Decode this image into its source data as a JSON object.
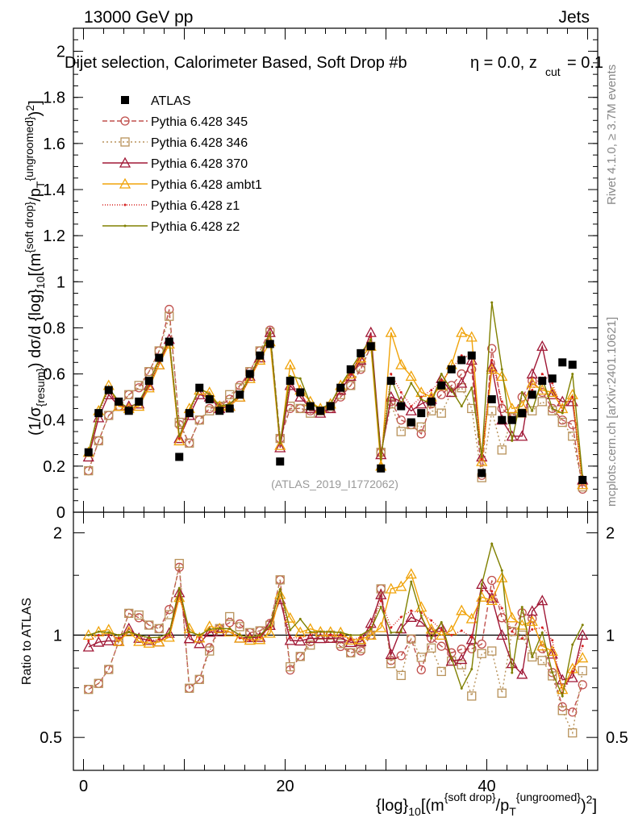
{
  "header": {
    "energy": "13000 GeV pp",
    "process": "Jets"
  },
  "side_labels": {
    "rivet": "Rivet 4.1.0, ≥ 3.7M events",
    "mcplots": "mcplots.cern.ch [arXiv:2401.10621]"
  },
  "chart_data": [
    {
      "type": "line",
      "panel": "main",
      "title": "Dijet selection, Calorimeter Based, Soft Drop #b = 0.0, z_cut = 0.1",
      "title_parts": {
        "main": "Dijet selection, Calorimeter Based, Soft Drop #b",
        "eta": "η = 0.0, z",
        "cut": "cut",
        "tail": " = 0.1"
      },
      "watermark": "(ATLAS_2019_I1772062)",
      "ylabel_text": "(1/σ_{resum}) dσ/d {log}_10[(m^{soft drop}/p_T^{ungroomed})^2]",
      "ylim": [
        0,
        2.1
      ],
      "xlim": [
        -1,
        51
      ],
      "yticks": [
        "0",
        "0.2",
        "0.4",
        "0.6",
        "0.8",
        "1",
        "1.2",
        "1.4",
        "1.6",
        "1.8",
        "2"
      ],
      "x": [
        0.5,
        1.5,
        2.5,
        3.5,
        4.5,
        5.5,
        6.5,
        7.5,
        8.5,
        9.5,
        10.5,
        11.5,
        12.5,
        13.5,
        14.5,
        15.5,
        16.5,
        17.5,
        18.5,
        19.5,
        20.5,
        21.5,
        22.5,
        23.5,
        24.5,
        25.5,
        26.5,
        27.5,
        28.5,
        29.5,
        30.5,
        31.5,
        32.5,
        33.5,
        34.5,
        35.5,
        36.5,
        37.5,
        38.5,
        39.5,
        40.5,
        41.5,
        42.5,
        43.5,
        44.5,
        45.5,
        46.5,
        47.5,
        48.5,
        49.5
      ],
      "series": [
        {
          "name": "ATLAS",
          "color": "#000000",
          "marker": "square-filled",
          "dash": "none",
          "values": [
            0.26,
            0.43,
            0.53,
            0.48,
            0.44,
            0.48,
            0.57,
            0.67,
            0.74,
            0.24,
            0.43,
            0.54,
            0.49,
            0.44,
            0.45,
            0.51,
            0.6,
            0.68,
            0.73,
            0.22,
            0.57,
            0.52,
            0.46,
            0.44,
            0.46,
            0.54,
            0.62,
            0.69,
            0.72,
            0.19,
            0.57,
            0.46,
            0.39,
            0.43,
            0.48,
            0.55,
            0.62,
            0.66,
            0.68,
            0.17,
            0.49,
            0.4,
            0.4,
            0.43,
            0.51,
            0.57,
            0.58,
            0.65,
            0.64,
            0.14
          ]
        },
        {
          "name": "Pythia 6.428 345",
          "color": "#c0504d",
          "marker": "circle-open",
          "dash": "6,3",
          "values": [
            0.18,
            0.31,
            0.42,
            0.46,
            0.51,
            0.54,
            0.61,
            0.7,
            0.88,
            0.38,
            0.3,
            0.4,
            0.45,
            0.46,
            0.49,
            0.55,
            0.61,
            0.7,
            0.79,
            0.32,
            0.45,
            0.45,
            0.44,
            0.44,
            0.45,
            0.5,
            0.55,
            0.62,
            0.72,
            0.26,
            0.48,
            0.4,
            0.38,
            0.34,
            0.47,
            0.51,
            0.55,
            0.6,
            0.62,
            0.16,
            0.71,
            0.45,
            0.41,
            0.5,
            0.57,
            0.52,
            0.45,
            0.4,
            0.38,
            0.1
          ]
        },
        {
          "name": "Pythia 6.428 346",
          "color": "#b8925a",
          "marker": "square-open",
          "dash": "2,3",
          "values": [
            0.18,
            0.31,
            0.42,
            0.46,
            0.51,
            0.55,
            0.61,
            0.7,
            0.85,
            0.39,
            0.3,
            0.4,
            0.44,
            0.46,
            0.51,
            0.54,
            0.61,
            0.7,
            0.78,
            0.32,
            0.46,
            0.45,
            0.43,
            0.44,
            0.46,
            0.51,
            0.55,
            0.63,
            0.72,
            0.26,
            0.47,
            0.35,
            0.38,
            0.37,
            0.44,
            0.43,
            0.52,
            0.54,
            0.45,
            0.15,
            0.44,
            0.27,
            0.41,
            0.43,
            0.44,
            0.48,
            0.44,
            0.39,
            0.33,
            0.11
          ]
        },
        {
          "name": "Pythia 6.428 370",
          "color": "#a01836",
          "marker": "triangle-open",
          "dash": "none",
          "values": [
            0.24,
            0.41,
            0.51,
            0.46,
            0.46,
            0.47,
            0.55,
            0.64,
            0.75,
            0.32,
            0.42,
            0.51,
            0.5,
            0.45,
            0.46,
            0.5,
            0.59,
            0.67,
            0.78,
            0.28,
            0.55,
            0.5,
            0.45,
            0.43,
            0.45,
            0.53,
            0.59,
            0.66,
            0.78,
            0.25,
            0.5,
            0.48,
            0.44,
            0.47,
            0.49,
            0.58,
            0.52,
            0.56,
            0.66,
            0.24,
            0.63,
            0.4,
            0.33,
            0.33,
            0.6,
            0.72,
            0.51,
            0.48,
            0.48,
            0.14
          ]
        },
        {
          "name": "Pythia 6.428 ambt1",
          "color": "#f0a30a",
          "marker": "triangle-open",
          "dash": "none",
          "values": [
            0.26,
            0.44,
            0.55,
            0.46,
            0.45,
            0.46,
            0.54,
            0.64,
            0.73,
            0.31,
            0.45,
            0.53,
            0.52,
            0.46,
            0.46,
            0.5,
            0.58,
            0.66,
            0.74,
            0.29,
            0.64,
            0.53,
            0.48,
            0.45,
            0.47,
            0.55,
            0.6,
            0.67,
            0.72,
            0.2,
            0.78,
            0.64,
            0.59,
            0.52,
            0.5,
            0.55,
            0.64,
            0.78,
            0.76,
            0.22,
            0.62,
            0.59,
            0.45,
            0.46,
            0.56,
            0.53,
            0.52,
            0.45,
            0.51,
            0.12
          ]
        },
        {
          "name": "Pythia 6.428 z1",
          "color": "#d6201f",
          "marker": "dot",
          "dash": "1,2",
          "values": [
            0.25,
            0.43,
            0.53,
            0.47,
            0.45,
            0.48,
            0.55,
            0.65,
            0.74,
            0.32,
            0.43,
            0.53,
            0.5,
            0.46,
            0.47,
            0.5,
            0.58,
            0.67,
            0.77,
            0.3,
            0.56,
            0.51,
            0.46,
            0.45,
            0.46,
            0.54,
            0.6,
            0.68,
            0.76,
            0.24,
            0.6,
            0.52,
            0.46,
            0.5,
            0.53,
            0.57,
            0.62,
            0.68,
            0.67,
            0.23,
            0.66,
            0.48,
            0.41,
            0.42,
            0.53,
            0.6,
            0.56,
            0.44,
            0.5,
            0.13
          ]
        },
        {
          "name": "Pythia 6.428 z2",
          "color": "#808000",
          "marker": "dot",
          "dash": "none",
          "values": [
            0.26,
            0.44,
            0.54,
            0.48,
            0.45,
            0.48,
            0.56,
            0.66,
            0.75,
            0.33,
            0.44,
            0.54,
            0.51,
            0.46,
            0.47,
            0.51,
            0.59,
            0.68,
            0.78,
            0.3,
            0.59,
            0.58,
            0.47,
            0.45,
            0.47,
            0.55,
            0.62,
            0.69,
            0.75,
            0.23,
            0.58,
            0.47,
            0.56,
            0.49,
            0.47,
            0.6,
            0.53,
            0.46,
            0.54,
            0.24,
            0.91,
            0.62,
            0.31,
            0.52,
            0.44,
            0.58,
            0.45,
            0.43,
            0.6,
            0.15
          ]
        }
      ],
      "legend_position": "top-left"
    },
    {
      "type": "line",
      "panel": "ratio",
      "ylabel": "Ratio to ATLAS",
      "ylim": [
        0.4,
        2.3
      ],
      "yscale": "log",
      "yticks": [
        "0.5",
        "1",
        "2"
      ],
      "xlim": [
        -1,
        51
      ],
      "xticks": [
        "0",
        "20",
        "40"
      ],
      "xlabel_text": "{log}_10[(m^{soft drop}/p_T^{ungroomed})^2]",
      "reference": 1.0,
      "series_names": [
        "Pythia 6.428 345",
        "Pythia 6.428 346",
        "Pythia 6.428 370",
        "Pythia 6.428 ambt1",
        "Pythia 6.428 z1",
        "Pythia 6.428 z2"
      ],
      "note": "ratio values = each series / ATLAS"
    }
  ]
}
